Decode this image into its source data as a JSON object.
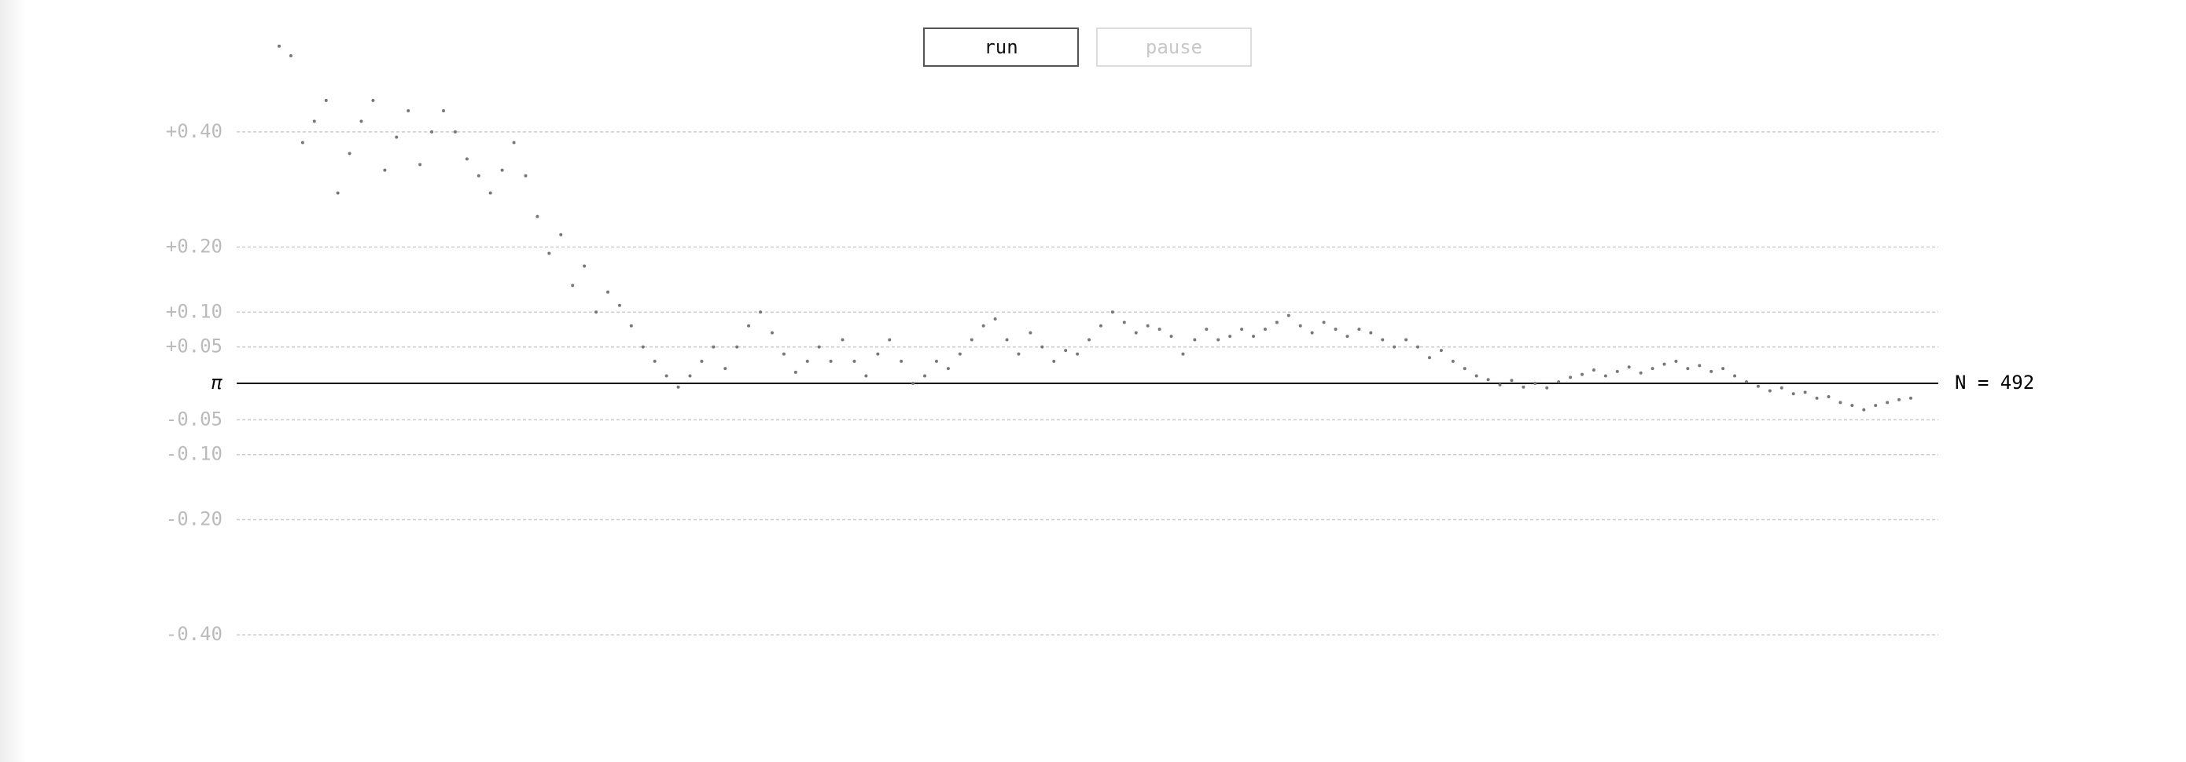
{
  "buttons": {
    "run": "run",
    "pause": "pause"
  },
  "chart_data": {
    "type": "scatter",
    "color": "#777777",
    "ylim": [
      -0.67,
      0.67
    ],
    "yticks": [
      {
        "value": 0.4,
        "label": "+0.40"
      },
      {
        "value": 0.2,
        "label": "+0.20"
      },
      {
        "value": 0.1,
        "label": "+0.10"
      },
      {
        "value": 0.05,
        "label": "+0.05"
      },
      {
        "value": 0,
        "label": "π"
      },
      {
        "value": -0.05,
        "label": "-0.05"
      },
      {
        "value": -0.1,
        "label": "-0.10"
      },
      {
        "value": -0.2,
        "label": "-0.20"
      },
      {
        "value": -0.4,
        "label": "-0.40"
      }
    ],
    "grid": true,
    "n_label": "N = 492",
    "values": [
      0.57,
      0.55,
      0.38,
      0.42,
      0.46,
      0.29,
      0.36,
      0.42,
      0.46,
      0.33,
      0.39,
      0.44,
      0.34,
      0.4,
      0.44,
      0.4,
      0.35,
      0.32,
      0.29,
      0.33,
      0.38,
      0.32,
      0.25,
      0.19,
      0.22,
      0.14,
      0.17,
      0.1,
      0.13,
      0.11,
      0.08,
      0.05,
      0.03,
      0.01,
      -0.005,
      0.01,
      0.03,
      0.05,
      0.02,
      0.05,
      0.08,
      0.1,
      0.07,
      0.04,
      0.015,
      0.03,
      0.05,
      0.03,
      0.06,
      0.03,
      0.01,
      0.04,
      0.06,
      0.03,
      0.0,
      0.01,
      0.03,
      0.02,
      0.04,
      0.06,
      0.08,
      0.09,
      0.06,
      0.04,
      0.07,
      0.05,
      0.03,
      0.045,
      0.04,
      0.06,
      0.08,
      0.1,
      0.085,
      0.07,
      0.08,
      0.075,
      0.065,
      0.04,
      0.06,
      0.075,
      0.06,
      0.065,
      0.075,
      0.065,
      0.075,
      0.085,
      0.095,
      0.08,
      0.07,
      0.085,
      0.075,
      0.065,
      0.075,
      0.07,
      0.06,
      0.05,
      0.06,
      0.05,
      0.035,
      0.045,
      0.03,
      0.02,
      0.01,
      0.005,
      -0.002,
      0.004,
      -0.005,
      0.0,
      -0.006,
      0.002,
      0.008,
      0.012,
      0.018,
      0.01,
      0.016,
      0.022,
      0.014,
      0.02,
      0.026,
      0.03,
      0.02,
      0.024,
      0.016,
      0.02,
      0.01,
      0.002,
      -0.004,
      -0.01,
      -0.006,
      -0.014,
      -0.012,
      -0.02,
      -0.018,
      -0.026,
      -0.03,
      -0.036,
      -0.03,
      -0.026,
      -0.022,
      -0.02
    ]
  }
}
